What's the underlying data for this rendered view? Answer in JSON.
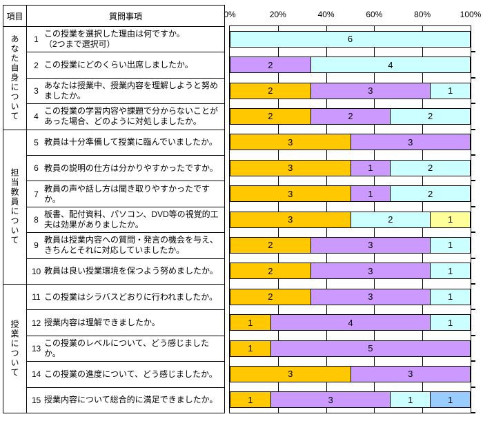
{
  "table": {
    "col1_header": "項目",
    "col2_header": "質問事項",
    "groups": [
      {
        "label": "あなた自身について",
        "question_count": 4
      },
      {
        "label": "担当教員について",
        "question_count": 6
      },
      {
        "label": "授業について",
        "question_count": 5
      }
    ],
    "questions": [
      {
        "no": "1",
        "text": "この授業を選択した理由は何ですか。\n（2つまで選択可）"
      },
      {
        "no": "2",
        "text": "この授業にどのくらい出席しましたか。"
      },
      {
        "no": "3",
        "text": "あなたは授業中、授業内容を理解しようと努めましたか。"
      },
      {
        "no": "4",
        "text": "この授業の学習内容や課題で分からないことがあった場合、どのように対処しましたか。"
      },
      {
        "no": "5",
        "text": "教員は十分準備して授業に臨んでいましたか。"
      },
      {
        "no": "6",
        "text": "教員の説明の仕方は分かりやすかったですか。"
      },
      {
        "no": "7",
        "text": "教員の声や話し方は聞き取りやすかったですか。"
      },
      {
        "no": "8",
        "text": "板書、配付資料、パソコン、DVD等の視覚的工夫は効果がありましたか。"
      },
      {
        "no": "9",
        "text": "教員は授業内容への質問・発言の機会を与え、きちんとそれに対応していましたか。"
      },
      {
        "no": "10",
        "text": "教員は良い授業環境を保つよう努めましたか。"
      },
      {
        "no": "11",
        "text": "この授業はシラバスどおりに行われましたか。"
      },
      {
        "no": "12",
        "text": "授業内容は理解できましたか。"
      },
      {
        "no": "13",
        "text": "この授業のレベルについて、どう感じましたか。"
      },
      {
        "no": "14",
        "text": "この授業の進度について、どう感じましたか。"
      },
      {
        "no": "15",
        "text": "授業内容について総合的に満足できましたか。"
      }
    ]
  },
  "chart_data": {
    "type": "bar",
    "orientation": "horizontal",
    "stacked": true,
    "axis_ticks": [
      "0%",
      "20%",
      "40%",
      "60%",
      "80%",
      "100%"
    ],
    "x_range": [
      0,
      100
    ],
    "respondents_total": 6,
    "grid": true,
    "palette": {
      "c1": "#FFC800",
      "c2": "#CC99FF",
      "c3": "#CCFFFF",
      "c4": "#FFFF99",
      "c5": "#99CCFF"
    },
    "rows": [
      {
        "question": "1",
        "segments": [
          {
            "value": 6,
            "color": "c3"
          }
        ]
      },
      {
        "question": "2",
        "segments": [
          {
            "value": 2,
            "color": "c2"
          },
          {
            "value": 4,
            "color": "c3"
          }
        ]
      },
      {
        "question": "3",
        "segments": [
          {
            "value": 2,
            "color": "c1"
          },
          {
            "value": 3,
            "color": "c2"
          },
          {
            "value": 1,
            "color": "c3"
          }
        ]
      },
      {
        "question": "4",
        "segments": [
          {
            "value": 2,
            "color": "c1"
          },
          {
            "value": 2,
            "color": "c2"
          },
          {
            "value": 2,
            "color": "c3"
          }
        ]
      },
      {
        "question": "5",
        "segments": [
          {
            "value": 3,
            "color": "c1"
          },
          {
            "value": 3,
            "color": "c2"
          }
        ]
      },
      {
        "question": "6",
        "segments": [
          {
            "value": 3,
            "color": "c1"
          },
          {
            "value": 1,
            "color": "c2"
          },
          {
            "value": 2,
            "color": "c3"
          }
        ]
      },
      {
        "question": "7",
        "segments": [
          {
            "value": 3,
            "color": "c1"
          },
          {
            "value": 1,
            "color": "c2"
          },
          {
            "value": 2,
            "color": "c3"
          }
        ]
      },
      {
        "question": "8",
        "segments": [
          {
            "value": 3,
            "color": "c1"
          },
          {
            "value": 2,
            "color": "c3"
          },
          {
            "value": 1,
            "color": "c4"
          }
        ]
      },
      {
        "question": "9",
        "segments": [
          {
            "value": 2,
            "color": "c1"
          },
          {
            "value": 3,
            "color": "c2"
          },
          {
            "value": 1,
            "color": "c3"
          }
        ]
      },
      {
        "question": "10",
        "segments": [
          {
            "value": 2,
            "color": "c1"
          },
          {
            "value": 3,
            "color": "c2"
          },
          {
            "value": 1,
            "color": "c3"
          }
        ]
      },
      {
        "question": "11",
        "segments": [
          {
            "value": 2,
            "color": "c1"
          },
          {
            "value": 3,
            "color": "c2"
          },
          {
            "value": 1,
            "color": "c3"
          }
        ]
      },
      {
        "question": "12",
        "segments": [
          {
            "value": 1,
            "color": "c1"
          },
          {
            "value": 4,
            "color": "c2"
          },
          {
            "value": 1,
            "color": "c3"
          }
        ]
      },
      {
        "question": "13",
        "segments": [
          {
            "value": 1,
            "color": "c1"
          },
          {
            "value": 5,
            "color": "c2"
          }
        ]
      },
      {
        "question": "14",
        "segments": [
          {
            "value": 3,
            "color": "c1"
          },
          {
            "value": 3,
            "color": "c2"
          }
        ]
      },
      {
        "question": "15",
        "segments": [
          {
            "value": 1,
            "color": "c1"
          },
          {
            "value": 3,
            "color": "c2"
          },
          {
            "value": 1,
            "color": "c3"
          },
          {
            "value": 1,
            "color": "c5"
          }
        ]
      }
    ]
  }
}
